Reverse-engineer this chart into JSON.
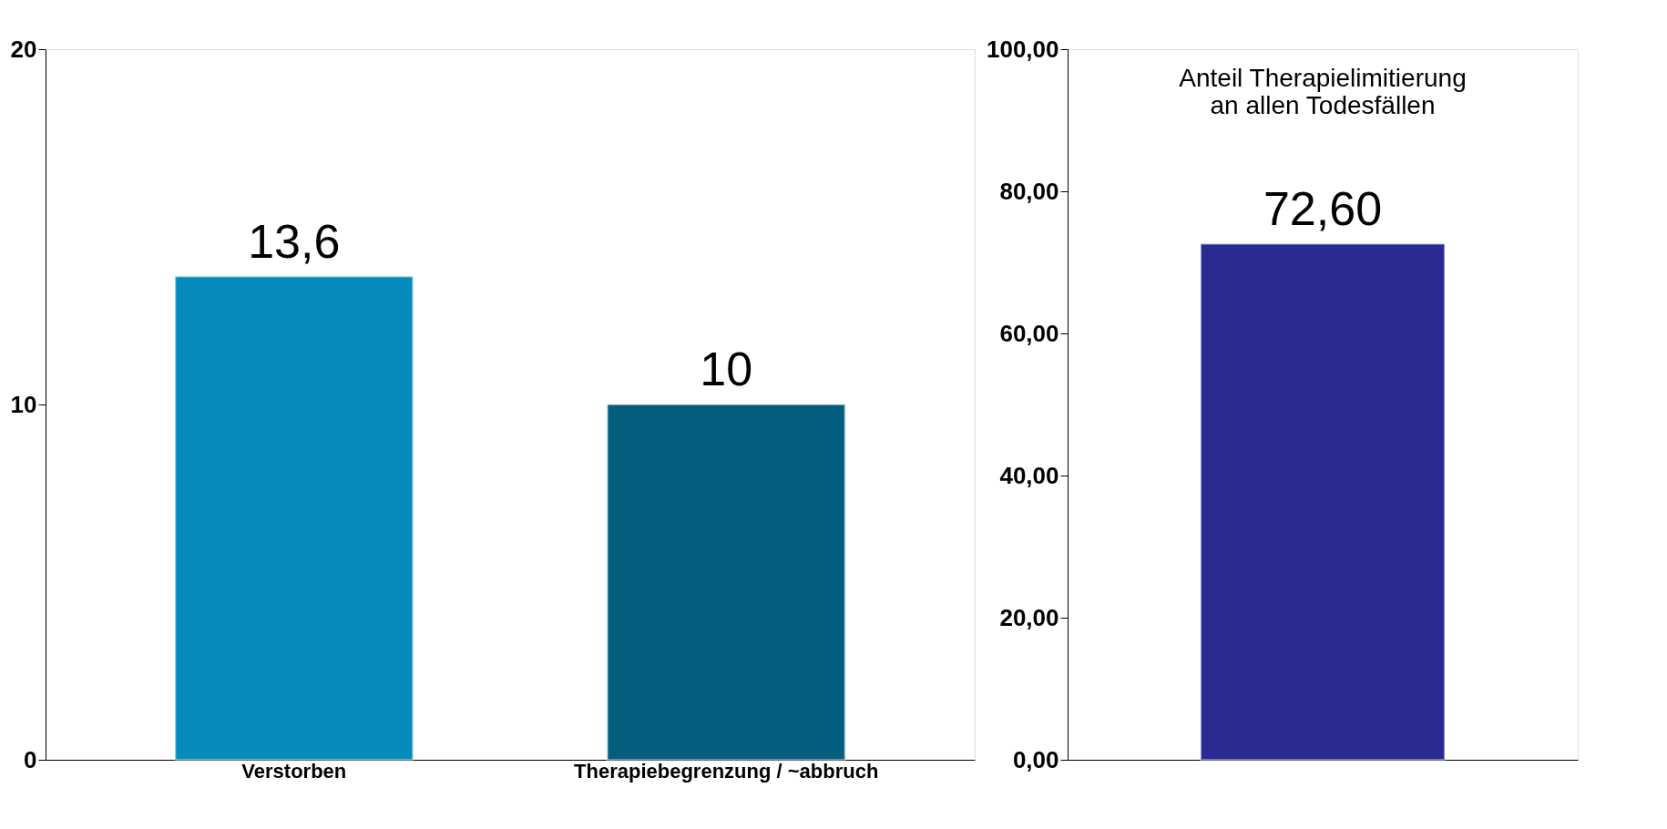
{
  "chart_data": [
    {
      "type": "bar",
      "categories": [
        "Verstorben",
        "Therapiebegrenzung / ~abbruch"
      ],
      "values": [
        13.6,
        10
      ],
      "colors": [
        "#078bbd",
        "#055e7e"
      ],
      "value_labels": [
        "13,6",
        "10"
      ],
      "ylim": [
        0,
        20
      ],
      "yticks": [
        0,
        10,
        20
      ],
      "grid": false,
      "legend": false
    },
    {
      "type": "bar",
      "title": "Anteil Therapielimitierung\nan allen Todesfällen",
      "categories": [
        null
      ],
      "values": [
        72.6
      ],
      "colors": [
        "#2a2a92"
      ],
      "value_labels": [
        "72,60"
      ],
      "ylim": [
        0,
        100
      ],
      "yticks": [
        {
          "value": 0,
          "label": "0,00"
        },
        {
          "value": 20,
          "label": "20,00"
        },
        {
          "value": 40,
          "label": "40,00"
        },
        {
          "value": 60,
          "label": "60,00"
        },
        {
          "value": 80,
          "label": "80,00"
        },
        {
          "value": 100,
          "label": "100,00"
        }
      ],
      "grid": false,
      "legend": false
    }
  ]
}
